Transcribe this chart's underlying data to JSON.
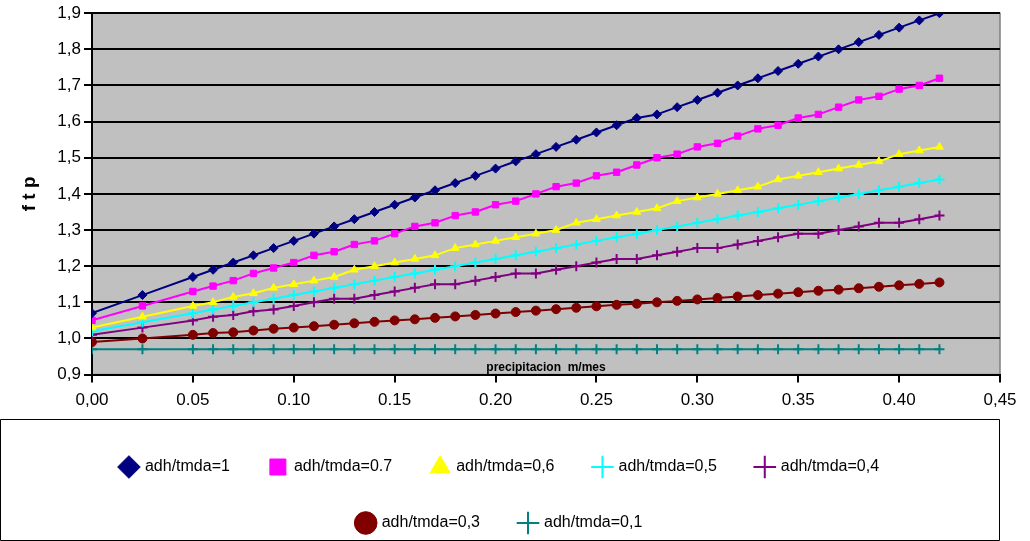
{
  "chart_data": {
    "type": "line",
    "xlabel": "precipitacion  m/mes",
    "ylabel": "f t p",
    "x": [
      0,
      0.025,
      0.05,
      0.06,
      0.07,
      0.08,
      0.09,
      0.1,
      0.11,
      0.12,
      0.13,
      0.14,
      0.15,
      0.16,
      0.17,
      0.18,
      0.19,
      0.2,
      0.21,
      0.22,
      0.23,
      0.24,
      0.25,
      0.26,
      0.27,
      0.28,
      0.29,
      0.3,
      0.31,
      0.32,
      0.33,
      0.34,
      0.35,
      0.36,
      0.37,
      0.38,
      0.39,
      0.4,
      0.41,
      0.42
    ],
    "series": [
      {
        "name": "adh/tmda=1",
        "color": "#000080",
        "marker": "diamond",
        "values": [
          1.07,
          1.12,
          1.17,
          1.19,
          1.21,
          1.23,
          1.25,
          1.27,
          1.29,
          1.31,
          1.33,
          1.35,
          1.37,
          1.39,
          1.41,
          1.43,
          1.45,
          1.47,
          1.49,
          1.51,
          1.53,
          1.55,
          1.57,
          1.59,
          1.61,
          1.62,
          1.64,
          1.66,
          1.68,
          1.7,
          1.72,
          1.74,
          1.76,
          1.78,
          1.8,
          1.82,
          1.84,
          1.86,
          1.88,
          1.9
        ]
      },
      {
        "name": "adh/tmda=0.7",
        "color": "#ff00ff",
        "marker": "square",
        "values": [
          1.05,
          1.09,
          1.13,
          1.145,
          1.16,
          1.18,
          1.195,
          1.21,
          1.23,
          1.24,
          1.26,
          1.27,
          1.29,
          1.31,
          1.32,
          1.34,
          1.35,
          1.37,
          1.38,
          1.4,
          1.42,
          1.43,
          1.45,
          1.46,
          1.48,
          1.5,
          1.51,
          1.53,
          1.54,
          1.56,
          1.58,
          1.59,
          1.61,
          1.62,
          1.64,
          1.66,
          1.67,
          1.69,
          1.7,
          1.72
        ]
      },
      {
        "name": "adh/tmda=0,6",
        "color": "#ffff00",
        "marker": "triangle",
        "values": [
          1.03,
          1.06,
          1.09,
          1.1,
          1.115,
          1.125,
          1.14,
          1.15,
          1.16,
          1.17,
          1.19,
          1.2,
          1.21,
          1.22,
          1.23,
          1.25,
          1.26,
          1.27,
          1.28,
          1.29,
          1.3,
          1.32,
          1.33,
          1.34,
          1.35,
          1.36,
          1.38,
          1.39,
          1.4,
          1.41,
          1.42,
          1.44,
          1.45,
          1.46,
          1.47,
          1.48,
          1.49,
          1.51,
          1.52,
          1.53
        ]
      },
      {
        "name": "adh/tmda=0,5",
        "color": "#00ffff",
        "marker": "cross",
        "values": [
          1.02,
          1.045,
          1.07,
          1.08,
          1.09,
          1.1,
          1.11,
          1.12,
          1.13,
          1.14,
          1.15,
          1.16,
          1.17,
          1.18,
          1.19,
          1.2,
          1.21,
          1.22,
          1.23,
          1.24,
          1.25,
          1.26,
          1.27,
          1.28,
          1.29,
          1.3,
          1.31,
          1.32,
          1.33,
          1.34,
          1.35,
          1.36,
          1.37,
          1.38,
          1.39,
          1.4,
          1.41,
          1.42,
          1.43,
          1.44
        ]
      },
      {
        "name": "adh/tmda=0,4",
        "color": "#800080",
        "marker": "cross",
        "values": [
          1.01,
          1.03,
          1.05,
          1.06,
          1.065,
          1.075,
          1.08,
          1.09,
          1.1,
          1.11,
          1.11,
          1.12,
          1.13,
          1.14,
          1.15,
          1.15,
          1.16,
          1.17,
          1.18,
          1.18,
          1.19,
          1.2,
          1.21,
          1.22,
          1.22,
          1.23,
          1.24,
          1.25,
          1.25,
          1.26,
          1.27,
          1.28,
          1.29,
          1.29,
          1.3,
          1.31,
          1.32,
          1.32,
          1.33,
          1.34
        ]
      },
      {
        "name": "adh/tmda=0,3",
        "color": "#800000",
        "marker": "circle",
        "values": [
          0.99,
          1.0,
          1.01,
          1.015,
          1.017,
          1.022,
          1.027,
          1.03,
          1.034,
          1.038,
          1.042,
          1.046,
          1.05,
          1.053,
          1.057,
          1.061,
          1.065,
          1.069,
          1.073,
          1.077,
          1.081,
          1.085,
          1.089,
          1.093,
          1.096,
          1.1,
          1.104,
          1.108,
          1.112,
          1.116,
          1.12,
          1.124,
          1.128,
          1.132,
          1.135,
          1.139,
          1.143,
          1.147,
          1.151,
          1.155
        ]
      },
      {
        "name": "adh/tmda=0,1",
        "color": "#008080",
        "marker": "cross",
        "values": [
          0.97,
          0.97,
          0.97,
          0.97,
          0.97,
          0.97,
          0.97,
          0.97,
          0.97,
          0.97,
          0.97,
          0.97,
          0.97,
          0.97,
          0.97,
          0.97,
          0.97,
          0.97,
          0.97,
          0.97,
          0.97,
          0.97,
          0.97,
          0.97,
          0.97,
          0.97,
          0.97,
          0.97,
          0.97,
          0.97,
          0.97,
          0.97,
          0.97,
          0.97,
          0.97,
          0.97,
          0.97,
          0.97,
          0.97,
          0.97
        ]
      }
    ],
    "xlim": [
      0,
      0.45
    ],
    "xticks": [
      {
        "value": 0,
        "label": "0,00"
      },
      {
        "value": 0.05,
        "label": "0.05"
      },
      {
        "value": 0.1,
        "label": "0.10"
      },
      {
        "value": 0.15,
        "label": "0.15"
      },
      {
        "value": 0.2,
        "label": "0.20"
      },
      {
        "value": 0.25,
        "label": "0.25"
      },
      {
        "value": 0.3,
        "label": "0.30"
      },
      {
        "value": 0.35,
        "label": "0.35"
      },
      {
        "value": 0.4,
        "label": "0.40"
      },
      {
        "value": 0.45,
        "label": "0,45"
      }
    ],
    "ylim": [
      0.9,
      1.9
    ],
    "yticks": [
      {
        "value": 0.9,
        "label": "0,9"
      },
      {
        "value": 1.0,
        "label": "1,0"
      },
      {
        "value": 1.1,
        "label": "1,1"
      },
      {
        "value": 1.2,
        "label": "1,2"
      },
      {
        "value": 1.3,
        "label": "1,3"
      },
      {
        "value": 1.4,
        "label": "1,4"
      },
      {
        "value": 1.5,
        "label": "1,5"
      },
      {
        "value": 1.6,
        "label": "1,6"
      },
      {
        "value": 1.7,
        "label": "1,7"
      },
      {
        "value": 1.8,
        "label": "1,8"
      },
      {
        "value": 1.9,
        "label": "1,9"
      }
    ],
    "grid": "y",
    "legend": "bottom",
    "line_style": "solid"
  }
}
